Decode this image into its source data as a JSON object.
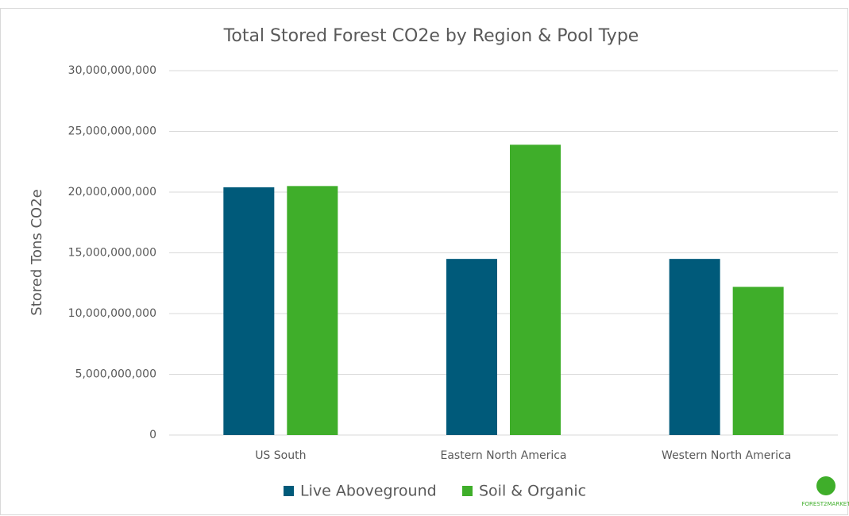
{
  "chart_data": {
    "type": "bar",
    "title": "Total Stored Forest CO2e by Region & Pool Type",
    "y_label": "Stored Tons CO2e",
    "categories": [
      "US South",
      "Eastern North America",
      "Western North America"
    ],
    "series": [
      {
        "name": "Live Aboveground",
        "color": "#005a7a",
        "values": [
          20400000000,
          14500000000,
          14500000000
        ]
      },
      {
        "name": "Soil & Organic",
        "color": "#3fae2a",
        "values": [
          20500000000,
          23900000000,
          12200000000
        ]
      }
    ],
    "ylim": [
      0,
      30000000000
    ],
    "yticks": [
      0,
      {
        "value": 5000000000,
        "label": "5,000,000,000"
      },
      {
        "value": 10000000000,
        "label": "10,000,000,000"
      },
      {
        "value": 15000000000,
        "label": "15,000,000,000"
      },
      {
        "value": 20000000000,
        "label": "20,000,000,000"
      },
      {
        "value": 25000000000,
        "label": "25,000,000,000"
      },
      {
        "value": 30000000000,
        "label": "30,000,000,000"
      }
    ],
    "grid": true,
    "legend": "bottom",
    "logo": "FOREST2MARKET"
  }
}
